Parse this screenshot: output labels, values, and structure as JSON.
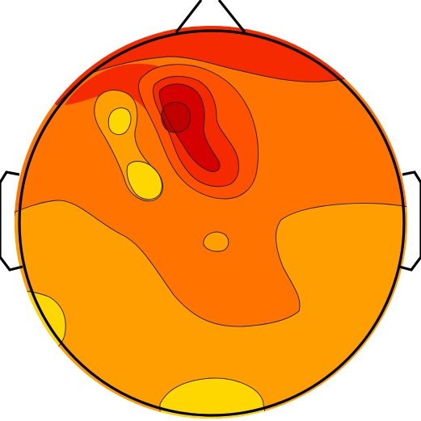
{
  "figure": {
    "type": "scalp-topography-map",
    "features": [
      "head-outline",
      "nose",
      "left-ear",
      "right-ear",
      "filled-contour-levels"
    ]
  },
  "colors": {
    "background": "#ffffff",
    "outline": "#000000",
    "contour_line": "#1a1a1a",
    "levels": [
      "#FFD700",
      "#FF9E00",
      "#FF7300",
      "#FF5200",
      "#F52A00",
      "#D50000",
      "#C00000"
    ]
  },
  "contour_levels": [
    {
      "name": "level-1",
      "color_index": 0
    },
    {
      "name": "level-2",
      "color_index": 1
    },
    {
      "name": "level-3",
      "color_index": 2
    },
    {
      "name": "level-4",
      "color_index": 3
    },
    {
      "name": "level-5",
      "color_index": 4
    },
    {
      "name": "level-6",
      "color_index": 5
    },
    {
      "name": "level-7",
      "color_index": 6
    }
  ]
}
